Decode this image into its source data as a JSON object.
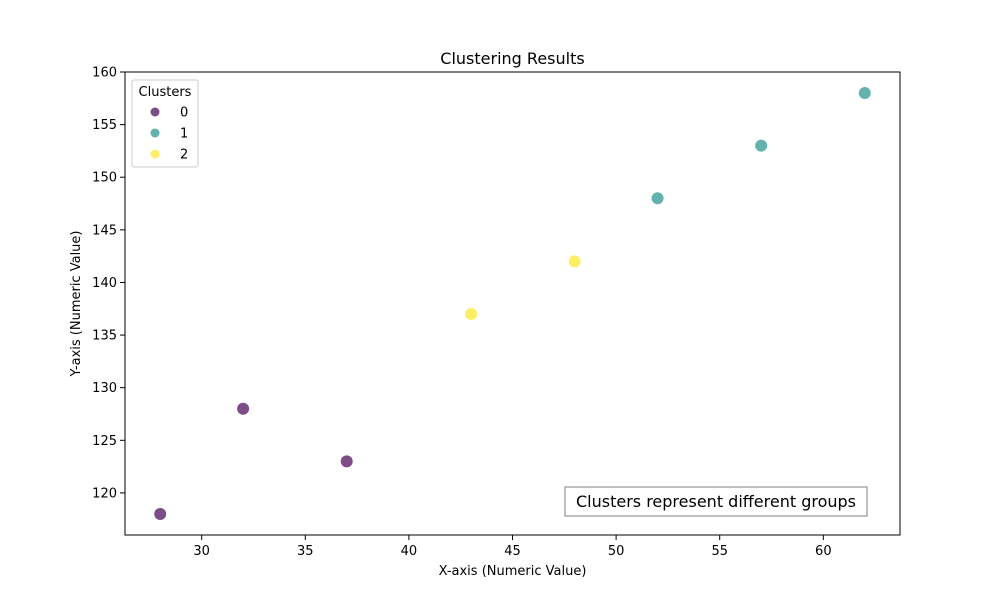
{
  "chart_data": {
    "type": "scatter",
    "title": "Clustering Results",
    "xlabel": "X-axis (Numeric Value)",
    "ylabel": "Y-axis (Numeric Value)",
    "xlim": [
      26.3,
      63.7
    ],
    "ylim": [
      116,
      160
    ],
    "xticks": [
      30,
      35,
      40,
      45,
      50,
      55,
      60
    ],
    "yticks": [
      120,
      125,
      130,
      135,
      140,
      145,
      150,
      155,
      160
    ],
    "grid": false,
    "legend": {
      "title": "Clusters",
      "placement": "top-left",
      "entries": [
        "0",
        "1",
        "2"
      ]
    },
    "series": [
      {
        "name": "0",
        "color": "#440154",
        "points": [
          [
            28,
            118
          ],
          [
            32,
            128
          ],
          [
            37,
            123
          ]
        ]
      },
      {
        "name": "1",
        "color": "#21918c",
        "points": [
          [
            52,
            148
          ],
          [
            57,
            153
          ],
          [
            62,
            158
          ]
        ]
      },
      {
        "name": "2",
        "color": "#fde725",
        "points": [
          [
            43,
            137
          ],
          [
            48,
            142
          ]
        ]
      }
    ],
    "annotation": "Clusters represent different groups"
  }
}
